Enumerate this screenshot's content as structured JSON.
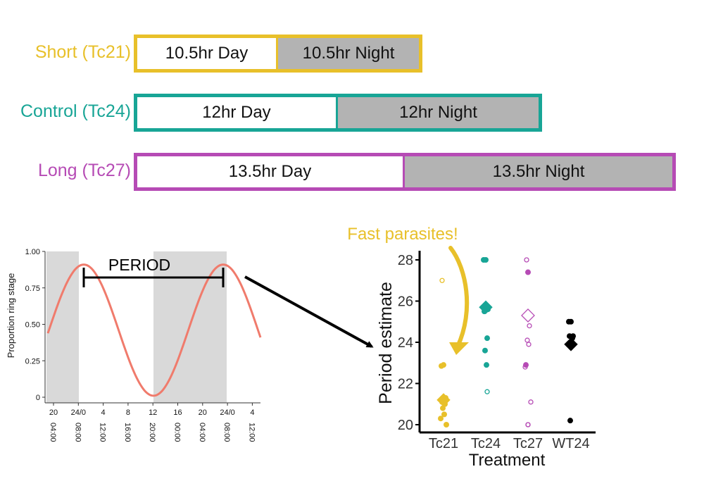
{
  "regimes": [
    {
      "label": "Short (Tc21)",
      "day": "10.5hr Day",
      "night": "10.5hr Night",
      "color": "#e8c02a"
    },
    {
      "label": "Control (Tc24)",
      "day": "12hr Day",
      "night": "12hr Night",
      "color": "#18a596"
    },
    {
      "label": "Long (Tc27)",
      "day": "13.5hr Day",
      "night": "13.5hr Night",
      "color": "#b64bb5"
    }
  ],
  "rhythm_chart": {
    "ylabel": "Proportion ring stage",
    "yticks": [
      "1.00",
      "0.75",
      "0.50",
      "0.25",
      "0"
    ],
    "xticks_top": [
      "20",
      "24/0",
      "4",
      "8",
      "12",
      "16",
      "20",
      "24/0",
      "4"
    ],
    "xticks_bottom": [
      "04:00",
      "08:00",
      "12:00",
      "16:00",
      "20:00",
      "00:00",
      "04:00",
      "08:00",
      "12:00"
    ],
    "period_label": "PERIOD",
    "curve_color": "#f07b6c",
    "shade_color": "#d9d9d9"
  },
  "annotation": {
    "text": "Fast parasites!",
    "color": "#e8c02a"
  },
  "chart_data": {
    "type": "scatter",
    "title": "",
    "xlabel": "Treatment",
    "ylabel": "Period estimate",
    "categories": [
      "Tc21",
      "Tc24",
      "Tc27",
      "WT24"
    ],
    "ylim": [
      19.8,
      28.4
    ],
    "yticks": [
      20,
      22,
      24,
      26,
      28
    ],
    "series": [
      {
        "category": "Tc21",
        "color": "#e8c02a",
        "mean": 21.2,
        "filled": [
          22.9,
          22.85,
          21.3,
          21.1,
          21.0,
          20.8,
          20.5,
          20.3,
          20.0
        ],
        "open": [
          27.0
        ]
      },
      {
        "category": "Tc24",
        "color": "#18a596",
        "mean": 25.7,
        "filled": [
          28.0,
          28.0,
          25.6,
          25.5,
          24.2,
          23.6,
          22.9
        ],
        "open": [
          28.0,
          21.6
        ]
      },
      {
        "category": "Tc27",
        "color": "#b64bb5",
        "mean": 25.3,
        "filled": [
          27.4,
          22.9
        ],
        "open": [
          28.0,
          24.8,
          24.1,
          23.9,
          22.8,
          21.1,
          20.0,
          20.0
        ]
      },
      {
        "category": "WT24",
        "color": "#000000",
        "mean": 23.9,
        "filled": [
          25.0,
          25.0,
          24.3,
          24.3,
          24.2,
          20.2
        ],
        "open": []
      }
    ]
  }
}
